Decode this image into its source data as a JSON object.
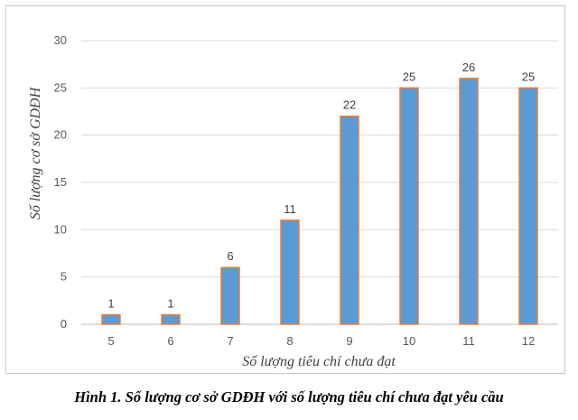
{
  "chart_data": {
    "type": "bar",
    "categories": [
      "5",
      "6",
      "7",
      "8",
      "9",
      "10",
      "11",
      "12"
    ],
    "values": [
      1,
      1,
      6,
      11,
      22,
      25,
      26,
      25
    ],
    "xlabel": "Số lượng tiêu chí chưa đạt",
    "ylabel": "Số lượng cơ sở GDĐH",
    "ylim": [
      0,
      30
    ],
    "yticks": [
      0,
      5,
      10,
      15,
      20,
      25,
      30
    ],
    "grid": true,
    "bar_color": "#5b9bd5",
    "bar_edge_color": "#ed7d31"
  },
  "caption": "Hình 1. Số lượng cơ sở GDĐH với số lượng tiêu chí chưa đạt yêu cầu"
}
